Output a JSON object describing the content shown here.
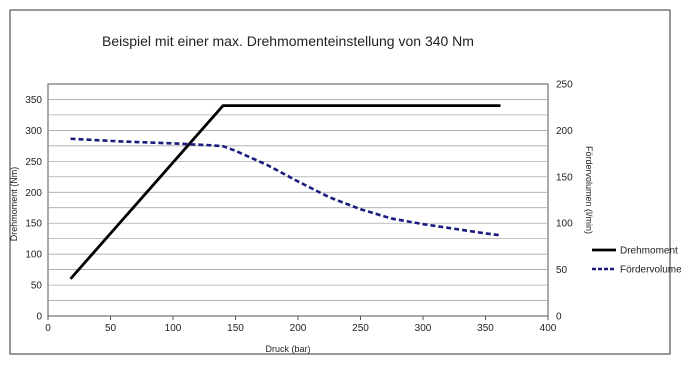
{
  "chart_data": {
    "type": "line",
    "title": "Beispiel mit einer max. Drehmomenteinstellung von 340 Nm",
    "xlabel": "Druck (bar)",
    "ylabel": "Drehmoment (Nm)",
    "y2label": "Fördervolumen (l/min)",
    "xlim": [
      0,
      400
    ],
    "ylim": [
      0,
      375
    ],
    "y2lim": [
      0,
      250
    ],
    "x_ticks": [
      "0",
      "50",
      "100",
      "150",
      "200",
      "250",
      "300",
      "350",
      "400"
    ],
    "y_ticks": [
      "0",
      "50",
      "100",
      "150",
      "200",
      "250",
      "300",
      "350"
    ],
    "y2_ticks": [
      "0",
      "50",
      "100",
      "150",
      "200",
      "250"
    ],
    "grid": true,
    "legend_position": "right",
    "series": [
      {
        "name": "Drehmoment",
        "axis": "left",
        "color": "#000000",
        "style": "solid",
        "x": [
          18,
          140,
          362
        ],
        "y": [
          60,
          340,
          340
        ]
      },
      {
        "name": "Fördervolumen",
        "axis": "right",
        "color": "#1a1a80",
        "style": "dashed",
        "x": [
          18,
          60,
          100,
          130,
          140,
          150,
          175,
          200,
          225,
          250,
          275,
          300,
          325,
          350,
          362
        ],
        "y": [
          191,
          188,
          186,
          184,
          183,
          178,
          163,
          145,
          128,
          115,
          105,
          99,
          94,
          89,
          87
        ]
      }
    ]
  }
}
